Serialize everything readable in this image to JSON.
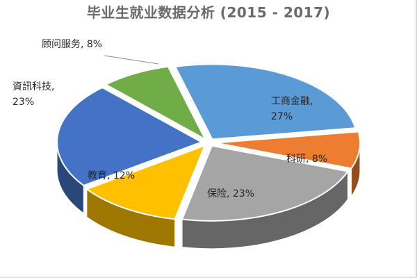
{
  "title": "毕业生就业数据分析 (2015 - 2017)",
  "chart_data": {
    "type": "pie",
    "style": "3d-exploded",
    "title": "毕业生就业数据分析 (2015 - 2017)",
    "unit": "%",
    "slices": [
      {
        "label": "工商金融",
        "value": 27,
        "color": "#5b9bd5"
      },
      {
        "label": "科研",
        "value": 8,
        "color": "#ed7d31"
      },
      {
        "label": "保险",
        "value": 23,
        "color": "#a5a5a5"
      },
      {
        "label": "教育",
        "value": 12,
        "color": "#ffc000"
      },
      {
        "label": "資訊科技",
        "value": 23,
        "color": "#4472c4"
      },
      {
        "label": "顾问服务",
        "value": 8,
        "color": "#70ad47"
      }
    ],
    "labels": [
      {
        "lines": [
          "工商金融,",
          "27%"
        ]
      },
      {
        "lines": [
          "科研, 8%"
        ]
      },
      {
        "lines": [
          "保险, 23%"
        ]
      },
      {
        "lines": [
          "教育, 12%"
        ]
      },
      {
        "lines": [
          "資訊科技,",
          "23%"
        ]
      },
      {
        "lines": [
          "顾问服务, 8%"
        ]
      }
    ]
  }
}
